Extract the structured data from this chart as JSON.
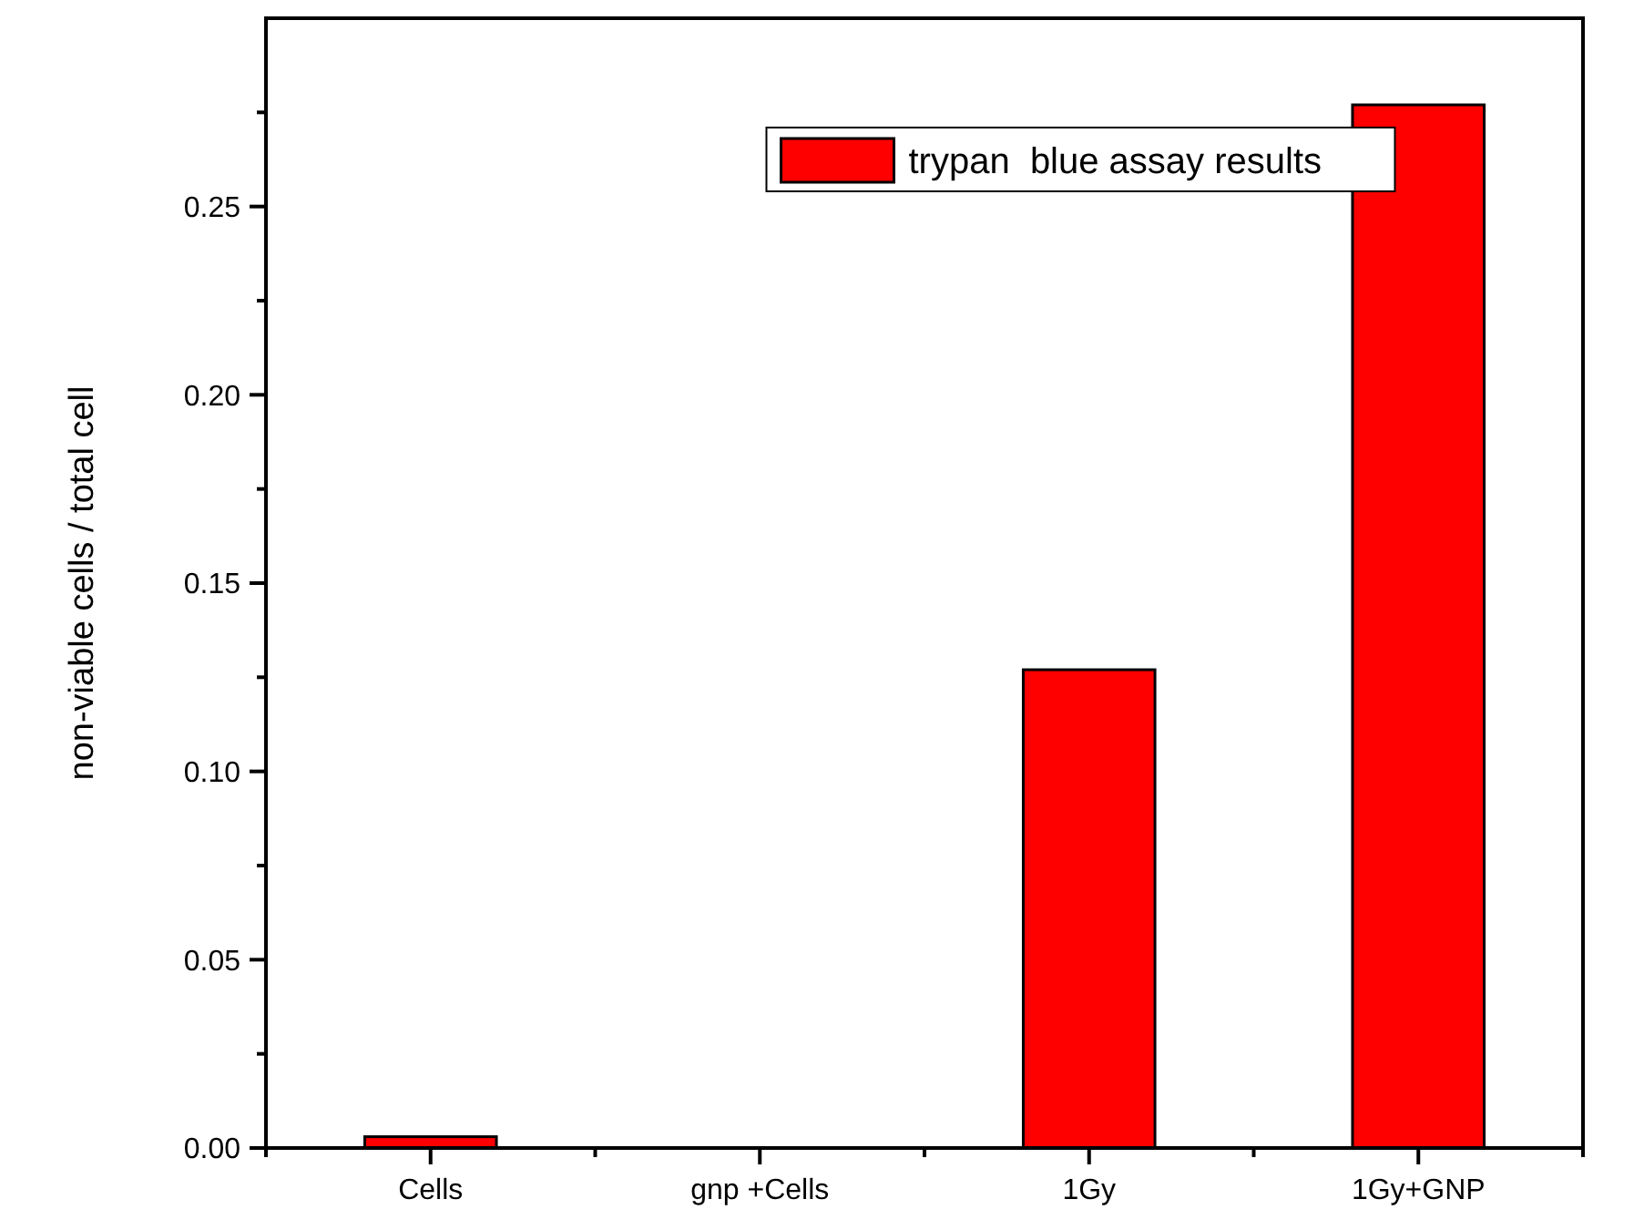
{
  "chart_data": {
    "type": "bar",
    "ylabel": "non-viable cells / total cell",
    "categories": [
      "Cells",
      "gnp +Cells",
      "1Gy",
      "1Gy+GNP"
    ],
    "series": [
      {
        "name": "trypan  blue assay results",
        "color": "#ff0000",
        "values": [
          0.003,
          0,
          0.127,
          0.277
        ]
      }
    ],
    "ylim": [
      0,
      0.3
    ],
    "yticks": [
      {
        "value": 0,
        "label": "0.00"
      },
      {
        "value": 0.025,
        "label": null
      },
      {
        "value": 0.05,
        "label": "0.05"
      },
      {
        "value": 0.075,
        "label": null
      },
      {
        "value": 0.1,
        "label": "0.10"
      },
      {
        "value": 0.125,
        "label": null
      },
      {
        "value": 0.15,
        "label": "0.15"
      },
      {
        "value": 0.175,
        "label": null
      },
      {
        "value": 0.2,
        "label": "0.20"
      },
      {
        "value": 0.225,
        "label": null
      },
      {
        "value": 0.25,
        "label": "0.25"
      },
      {
        "value": 0.275,
        "label": null
      }
    ],
    "grid": false,
    "legend": "top"
  }
}
